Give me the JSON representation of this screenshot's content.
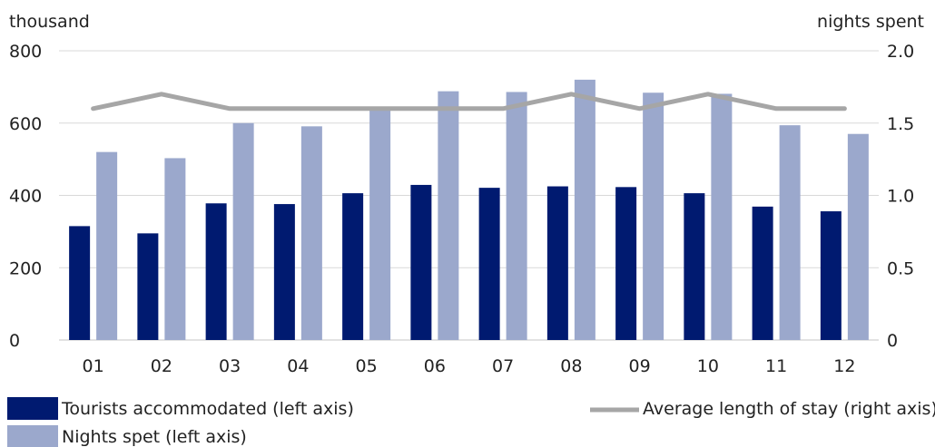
{
  "chart_data": {
    "type": "bar",
    "categories": [
      "01",
      "02",
      "03",
      "04",
      "05",
      "06",
      "07",
      "08",
      "09",
      "10",
      "11",
      "12"
    ],
    "series": [
      {
        "name": "Tourists accommodated (left axis)",
        "kind": "bar",
        "axis": "left",
        "color": "#001a70",
        "values": [
          315,
          295,
          378,
          376,
          406,
          429,
          421,
          425,
          423,
          406,
          369,
          356
        ]
      },
      {
        "name": "Nights spet (left axis)",
        "kind": "bar",
        "axis": "left",
        "color": "#9ba8cc",
        "values": [
          520,
          503,
          600,
          591,
          640,
          688,
          686,
          720,
          684,
          681,
          594,
          570
        ]
      },
      {
        "name": "Average length of stay (right axis)",
        "kind": "line",
        "axis": "right",
        "color": "#a6a6a6",
        "values": [
          1.6,
          1.7,
          1.6,
          1.6,
          1.6,
          1.6,
          1.6,
          1.7,
          1.6,
          1.7,
          1.6,
          1.6
        ]
      }
    ],
    "left_axis": {
      "unit_label": "thousand",
      "ylim": [
        0,
        800
      ],
      "ticks": [
        0,
        200,
        400,
        600,
        800
      ],
      "tick_labels": [
        "0",
        "200",
        "400",
        "600",
        "800"
      ]
    },
    "right_axis": {
      "unit_label": "nights spent",
      "ylim": [
        0,
        2.0
      ],
      "ticks": [
        0,
        0.5,
        1.0,
        1.5,
        2.0
      ],
      "tick_labels": [
        "0",
        "0.5",
        "1.0",
        "1.5",
        "2.0"
      ]
    },
    "grid": true,
    "legend_position": "bottom",
    "gridline_color": "#d9d9d9"
  }
}
